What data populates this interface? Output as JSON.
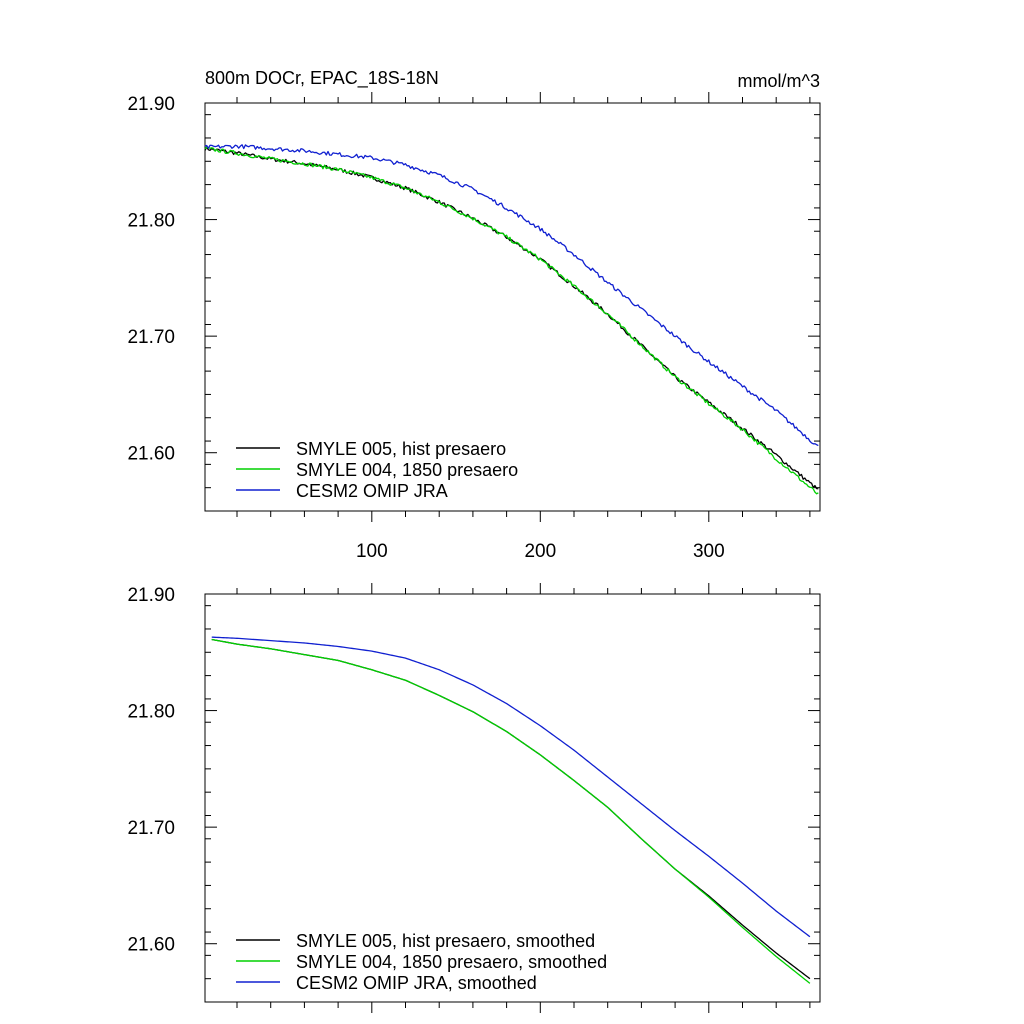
{
  "figure": {
    "title": "800m DOCr, EPAC_18S-18N",
    "units": "mmol/m^3"
  },
  "chart_data": [
    {
      "type": "line",
      "title": "800m DOCr, EPAC_18S-18N",
      "units": "mmol/m^3",
      "xlabel": "",
      "ylabel": "",
      "xlim": [
        1,
        366
      ],
      "ylim": [
        21.55,
        21.9
      ],
      "xticks": [
        100,
        200,
        300
      ],
      "xtick_labels": [
        "100",
        "200",
        "300"
      ],
      "yticks": [
        21.6,
        21.7,
        21.8,
        21.9
      ],
      "ytick_labels": [
        "21.60",
        "21.70",
        "21.80",
        "21.90"
      ],
      "grid": false,
      "legend_position": "bottom-left",
      "x": [
        1,
        20,
        40,
        60,
        80,
        100,
        120,
        140,
        160,
        180,
        200,
        220,
        240,
        260,
        280,
        300,
        320,
        340,
        365
      ],
      "series": [
        {
          "name": "SMYLE 005, hist presaero",
          "color": "#000000",
          "noisy": true,
          "values": [
            21.861,
            21.857,
            21.852,
            21.848,
            21.843,
            21.836,
            21.827,
            21.815,
            21.801,
            21.785,
            21.766,
            21.743,
            21.719,
            21.692,
            21.665,
            21.643,
            21.621,
            21.598,
            21.568
          ]
        },
        {
          "name": "SMYLE 004, 1850 presaero",
          "color": "#00d000",
          "noisy": true,
          "values": [
            21.861,
            21.857,
            21.852,
            21.848,
            21.843,
            21.836,
            21.827,
            21.815,
            21.801,
            21.785,
            21.766,
            21.743,
            21.719,
            21.692,
            21.665,
            21.642,
            21.62,
            21.595,
            21.564
          ]
        },
        {
          "name": "CESM2 OMIP JRA",
          "color": "#1020d0",
          "noisy": true,
          "values": [
            21.862,
            21.863,
            21.861,
            21.859,
            21.856,
            21.853,
            21.847,
            21.838,
            21.826,
            21.81,
            21.792,
            21.77,
            21.746,
            21.723,
            21.7,
            21.678,
            21.657,
            21.636,
            21.605
          ]
        }
      ]
    },
    {
      "type": "line",
      "title": "",
      "xlabel": "",
      "ylabel": "",
      "xlim": [
        1,
        366
      ],
      "ylim": [
        21.55,
        21.9
      ],
      "xticks": [
        100,
        200,
        300
      ],
      "xtick_labels": [],
      "yticks": [
        21.6,
        21.7,
        21.8,
        21.9
      ],
      "ytick_labels": [
        "21.60",
        "21.70",
        "21.80",
        "21.90"
      ],
      "grid": false,
      "legend_position": "bottom-left",
      "x": [
        5,
        20,
        40,
        60,
        80,
        100,
        120,
        140,
        160,
        180,
        200,
        220,
        240,
        260,
        280,
        300,
        320,
        340,
        360
      ],
      "series": [
        {
          "name": "SMYLE 005, hist presaero, smoothed",
          "color": "#000000",
          "noisy": false,
          "values": [
            21.861,
            21.857,
            21.853,
            21.848,
            21.843,
            21.835,
            21.826,
            21.813,
            21.799,
            21.782,
            21.762,
            21.74,
            21.717,
            21.69,
            21.664,
            21.641,
            21.616,
            21.592,
            21.57
          ]
        },
        {
          "name": "SMYLE 004, 1850 presaero, smoothed",
          "color": "#00d000",
          "noisy": false,
          "values": [
            21.861,
            21.857,
            21.853,
            21.848,
            21.843,
            21.835,
            21.826,
            21.813,
            21.799,
            21.782,
            21.762,
            21.74,
            21.717,
            21.69,
            21.664,
            21.64,
            21.614,
            21.589,
            21.566
          ]
        },
        {
          "name": "CESM2 OMIP JRA, smoothed",
          "color": "#1020d0",
          "noisy": false,
          "values": [
            21.863,
            21.862,
            21.86,
            21.858,
            21.855,
            21.851,
            21.845,
            21.835,
            21.822,
            21.806,
            21.787,
            21.766,
            21.743,
            21.72,
            21.697,
            21.675,
            21.652,
            21.628,
            21.606
          ]
        }
      ]
    }
  ]
}
